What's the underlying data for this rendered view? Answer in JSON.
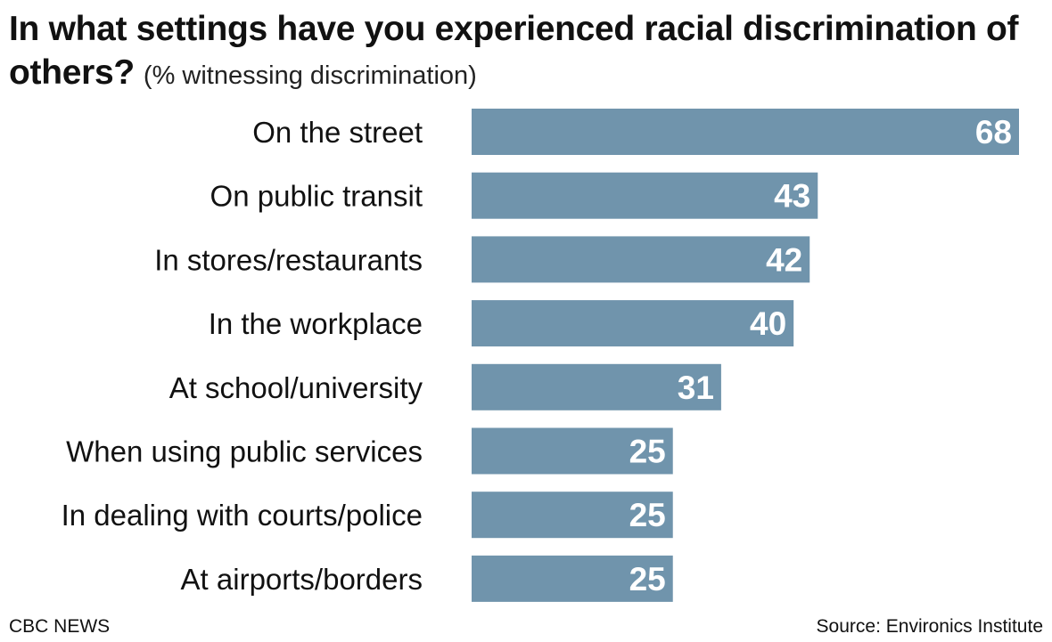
{
  "header": {
    "title": "In what settings have you experienced racial discrimination of others?",
    "subtitle": "(% witnessing discrimination)"
  },
  "footer": {
    "brand": "CBC NEWS",
    "source": "Source: Environics Institute"
  },
  "colors": {
    "bar": "#7094ac",
    "value_text": "#ffffff",
    "label_text": "#111111"
  },
  "chart_data": {
    "type": "bar",
    "orientation": "horizontal",
    "title": "In what settings have you experienced racial discrimination of others?",
    "subtitle": "(% witnessing discrimination)",
    "categories": [
      "On the street",
      "On public transit",
      "In stores/restaurants",
      "In the workplace",
      "At school/university",
      "When using public services",
      "In dealing with courts/police",
      "At airports/borders"
    ],
    "values": [
      68,
      43,
      42,
      40,
      31,
      25,
      25,
      25
    ],
    "xlim": [
      0,
      68
    ],
    "grid": false,
    "data_labels": true
  }
}
